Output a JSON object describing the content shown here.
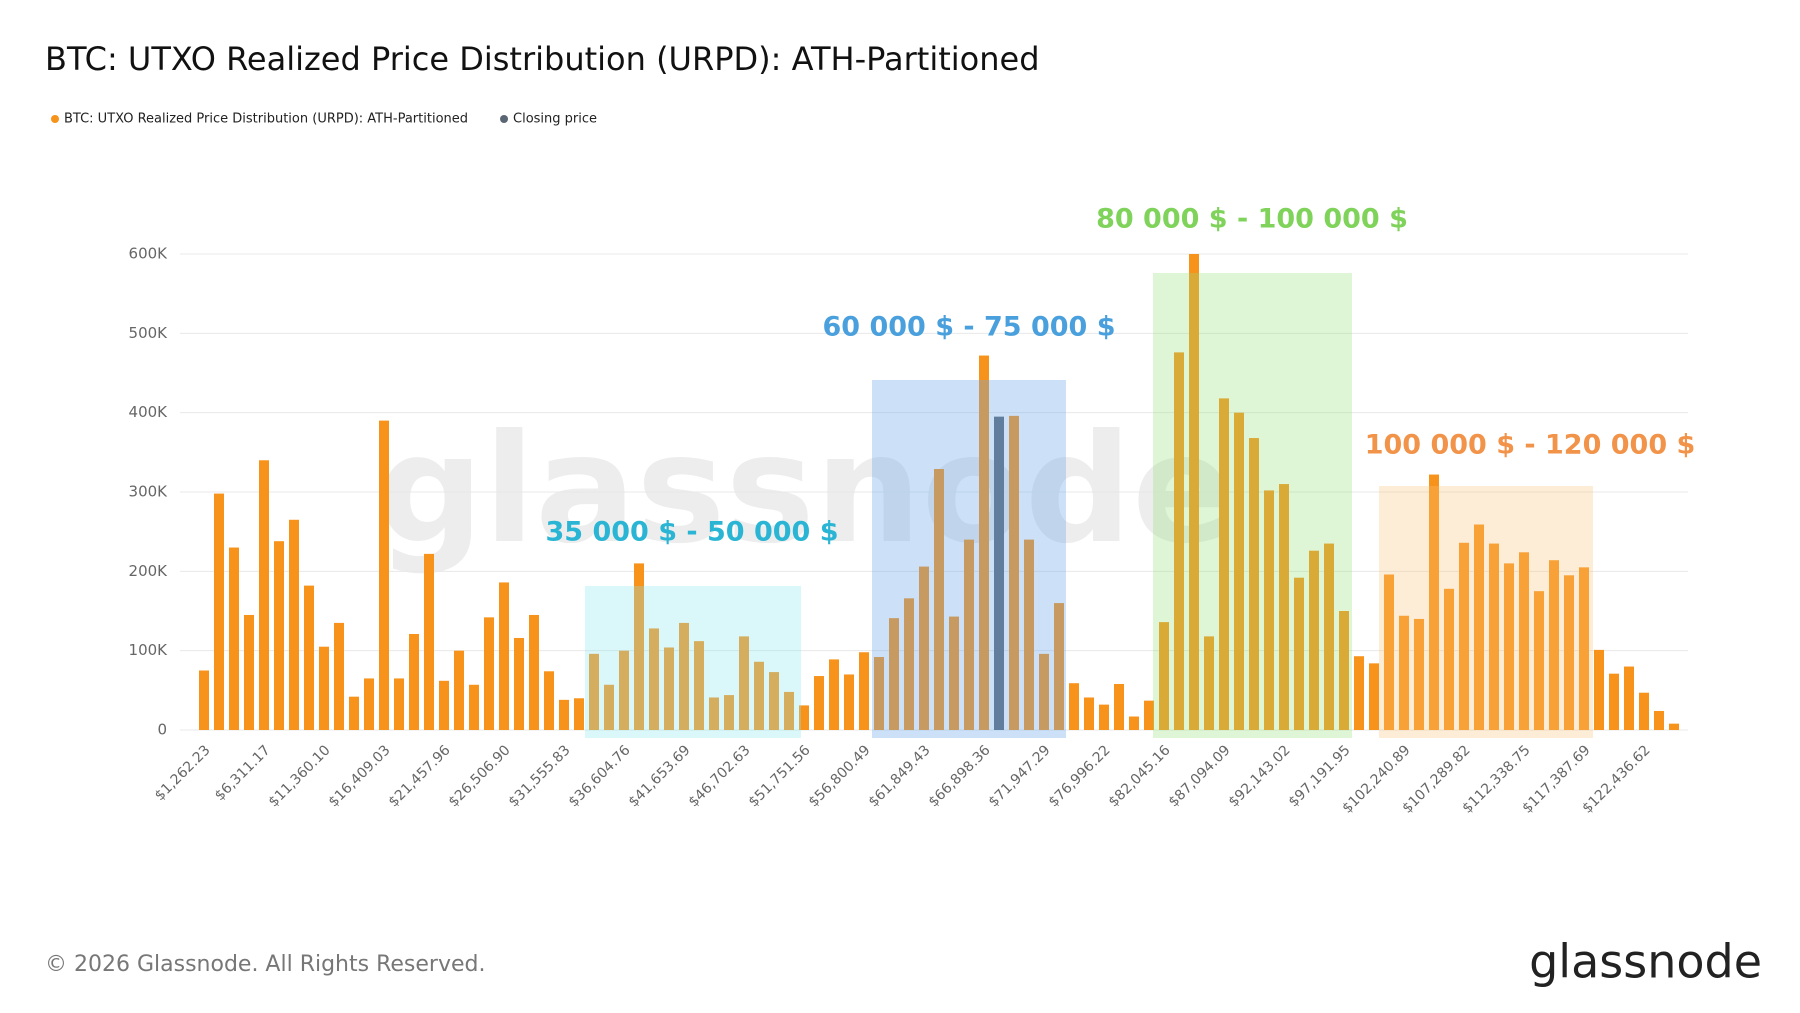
{
  "chart_data": {
    "type": "bar",
    "title": "BTC: UTXO Realized Price Distribution (URPD): ATH-Partitioned",
    "categories": [
      "$1,262.23",
      null,
      null,
      null,
      "$6,311.17",
      null,
      null,
      null,
      "$11,360.10",
      null,
      null,
      null,
      "$16,409.03",
      null,
      null,
      null,
      "$21,457.96",
      null,
      null,
      null,
      "$26,506.90",
      null,
      null,
      null,
      "$31,555.83",
      null,
      null,
      null,
      "$36,604.76",
      null,
      null,
      null,
      "$41,653.69",
      null,
      null,
      null,
      "$46,702.63",
      null,
      null,
      null,
      "$51,751.56",
      null,
      null,
      null,
      "$56,800.49",
      null,
      null,
      null,
      "$61,849.43",
      null,
      null,
      null,
      "$66,898.36",
      null,
      null,
      null,
      "$71,947.29",
      null,
      null,
      null,
      "$76,996.22",
      null,
      null,
      null,
      "$82,045.16",
      null,
      null,
      null,
      "$87,094.09",
      null,
      null,
      null,
      "$92,143.02",
      null,
      null,
      null,
      "$97,191.95",
      null,
      null,
      null,
      "$102,240.89",
      null,
      null,
      null,
      "$107,289.82",
      null,
      null,
      null,
      "$112,338.75",
      null,
      null,
      null,
      "$117,387.69",
      null,
      null,
      null,
      "$122,436.62",
      null,
      null
    ],
    "series": [
      {
        "name": "BTC: UTXO Realized Price Distribution (URPD): ATH-Partitioned",
        "color": "#f7931a",
        "values": [
          75000,
          298000,
          230000,
          145000,
          340000,
          238000,
          265000,
          182000,
          105000,
          135000,
          42000,
          65000,
          390000,
          65000,
          121000,
          222000,
          62000,
          100000,
          57000,
          142000,
          186000,
          116000,
          145000,
          74000,
          38000,
          40000,
          96000,
          57000,
          100000,
          210000,
          128000,
          104000,
          135000,
          112000,
          41000,
          44000,
          118000,
          86000,
          73000,
          48000,
          31000,
          68000,
          89000,
          70000,
          98000,
          92000,
          141000,
          166000,
          206000,
          329000,
          143000,
          240000,
          472000,
          null,
          396000,
          240000,
          96000,
          160000,
          59000,
          41000,
          32000,
          58000,
          17000,
          37000,
          136000,
          476000,
          600000,
          118000,
          418000,
          400000,
          368000,
          302000,
          310000,
          192000,
          226000,
          235000,
          150000,
          93000,
          84000,
          196000,
          144000,
          140000,
          322000,
          178000,
          236000,
          259000,
          235000,
          210000,
          224000,
          175000,
          214000,
          195000,
          205000,
          101000,
          71000,
          80000,
          47000,
          24000,
          8000
        ]
      },
      {
        "name": "Closing price",
        "color": "#5b6675",
        "values": [
          null,
          null,
          null,
          null,
          null,
          null,
          null,
          null,
          null,
          null,
          null,
          null,
          null,
          null,
          null,
          null,
          null,
          null,
          null,
          null,
          null,
          null,
          null,
          null,
          null,
          null,
          null,
          null,
          null,
          null,
          null,
          null,
          null,
          null,
          null,
          null,
          null,
          null,
          null,
          null,
          null,
          null,
          null,
          null,
          null,
          null,
          null,
          null,
          null,
          null,
          null,
          null,
          null,
          395000,
          null,
          null,
          null,
          null,
          null,
          null,
          null,
          null,
          null,
          null,
          null,
          null,
          null,
          null,
          null,
          null,
          null,
          null,
          null,
          null,
          null,
          null,
          null,
          null,
          null,
          null,
          null,
          null,
          null,
          null,
          null,
          null,
          null,
          null,
          null,
          null,
          null,
          null,
          null,
          null,
          null,
          null,
          null,
          null,
          null
        ]
      }
    ],
    "ylim": [
      0,
      600000
    ],
    "yticks": [
      0,
      {
        "value": 100000,
        "label": "100K"
      },
      {
        "value": 200000,
        "label": "200K"
      },
      {
        "value": 300000,
        "label": "300K"
      },
      {
        "value": 400000,
        "label": "400K"
      },
      {
        "value": 500000,
        "label": "500K"
      },
      {
        "value": 600000,
        "label": "600K"
      }
    ],
    "grid": true,
    "annotations": [
      {
        "text": "35 000 $ - 50 000 $",
        "color": "#2bb5d4"
      },
      {
        "text": "60 000 $ - 75 000 $",
        "color": "#4aa0dc"
      },
      {
        "text": "80 000 $ - 100 000 $",
        "color": "#7fd35a"
      },
      {
        "text": "100 000 $ - 120 000 $",
        "color": "#f2934a"
      }
    ]
  },
  "footer": {
    "copyright": "© 2026 Glassnode. All Rights Reserved.",
    "logo": "glassnode"
  }
}
